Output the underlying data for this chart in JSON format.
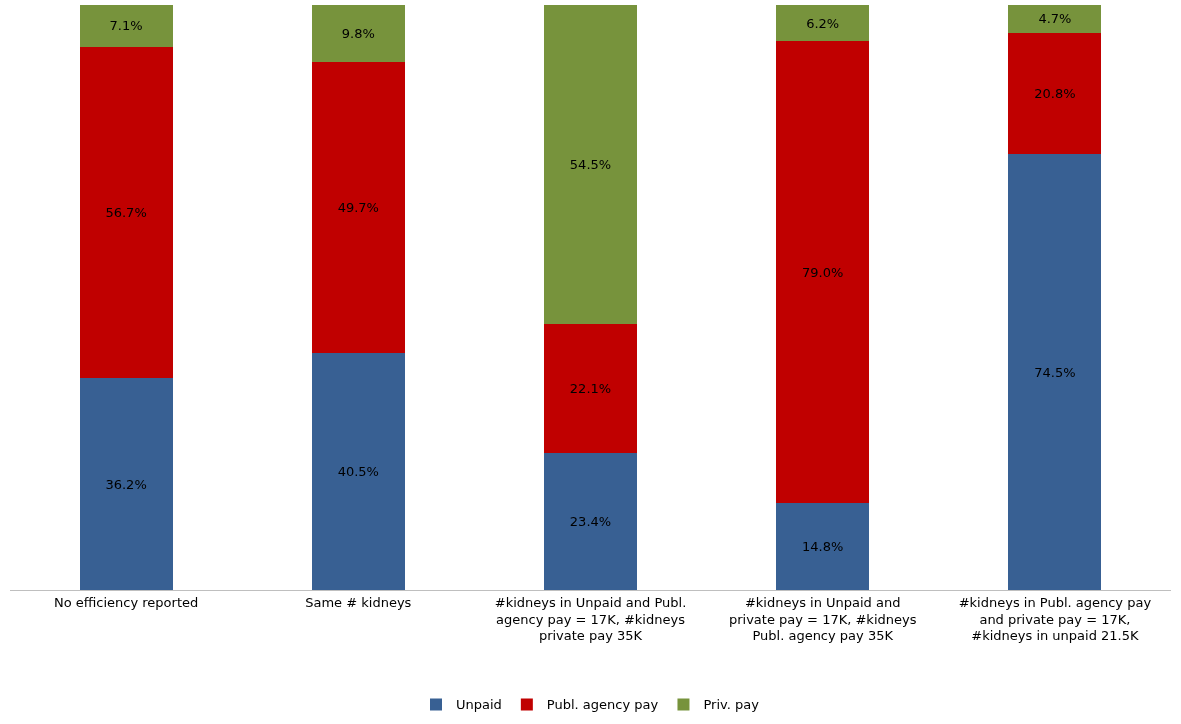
{
  "chart_data": {
    "type": "bar",
    "stacked": true,
    "legend": "bottom",
    "tick_labels": "x",
    "categories": [
      "No efficiency reported",
      "Same # kidneys",
      "#kidneys in Unpaid and Publ. agency pay = 17K, #kidneys private pay 35K",
      "#kidneys in Unpaid and private pay = 17K, #kidneys Publ. agency pay 35K",
      "#kidneys in Publ. agency pay and private pay = 17K, #kidneys in unpaid 21.5K"
    ],
    "series": [
      {
        "name": "Unpaid",
        "color": "#386093",
        "values": [
          36.2,
          40.5,
          23.4,
          14.8,
          74.5
        ],
        "value_labels": [
          "36.2%",
          "40.5%",
          "23.4%",
          "14.8%",
          "74.5%"
        ]
      },
      {
        "name": "Publ. agency pay",
        "color": "#c00000",
        "values": [
          56.7,
          49.7,
          22.1,
          79.0,
          20.8
        ],
        "value_labels": [
          "56.7%",
          "49.7%",
          "22.1%",
          "79.0%",
          "20.8%"
        ]
      },
      {
        "name": "Priv. pay",
        "color": "#77933c",
        "values": [
          7.1,
          9.8,
          54.5,
          6.2,
          4.7
        ],
        "value_labels": [
          "7.1%",
          "9.8%",
          "54.5%",
          "6.2%",
          "4.7%"
        ]
      }
    ]
  }
}
